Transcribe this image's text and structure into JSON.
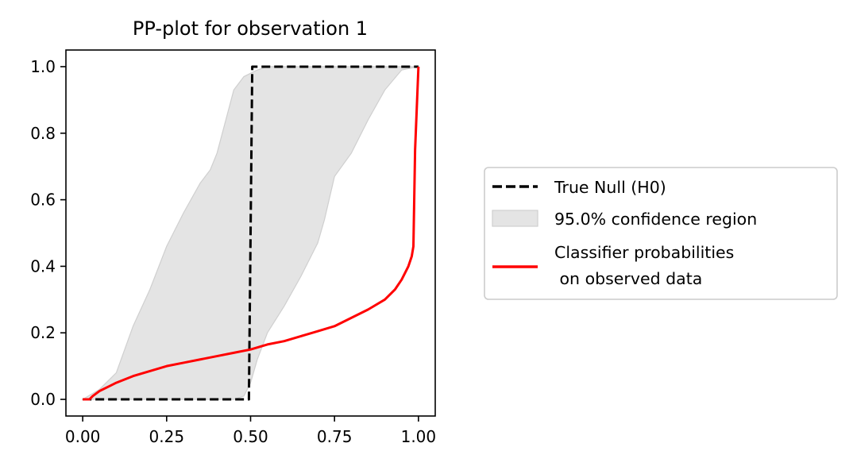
{
  "chart_data": {
    "type": "line",
    "title": "PP-plot for observation 1",
    "xlabel": "",
    "ylabel": "",
    "xlim": [
      -0.05,
      1.05
    ],
    "ylim": [
      -0.05,
      1.05
    ],
    "x_ticks": [
      "0.00",
      "0.25",
      "0.50",
      "0.75",
      "1.00"
    ],
    "y_ticks": [
      "0.0",
      "0.2",
      "0.4",
      "0.6",
      "0.8",
      "1.0"
    ],
    "x_tick_values": [
      0,
      0.25,
      0.5,
      0.75,
      1.0
    ],
    "y_tick_values": [
      0,
      0.2,
      0.4,
      0.6,
      0.8,
      1.0
    ],
    "grid": false,
    "legend_position": "right-outside",
    "series": [
      {
        "name": "True Null (H0)",
        "kind": "line",
        "style": "dashed",
        "color": "#000000",
        "x": [
          0.0,
          0.495,
          0.505,
          1.0
        ],
        "y": [
          0.0,
          0.0,
          1.0,
          1.0
        ]
      },
      {
        "name": "95.0% confidence region",
        "kind": "band",
        "color": "#e4e4e4",
        "edge_color": "#cfcfcf",
        "x": [
          0.0,
          0.05,
          0.1,
          0.15,
          0.2,
          0.25,
          0.3,
          0.35,
          0.38,
          0.4,
          0.45,
          0.48,
          0.5,
          0.52,
          0.55,
          0.6,
          0.65,
          0.7,
          0.72,
          0.75,
          0.8,
          0.85,
          0.9,
          0.95,
          1.0
        ],
        "lower": [
          0.0,
          0.0,
          0.0,
          0.0,
          0.0,
          0.0,
          0.0,
          0.0,
          0.0,
          0.0,
          0.0,
          0.01,
          0.05,
          0.12,
          0.2,
          0.28,
          0.37,
          0.47,
          0.54,
          0.67,
          0.74,
          0.84,
          0.93,
          0.99,
          1.0
        ],
        "upper": [
          0.0,
          0.03,
          0.08,
          0.22,
          0.33,
          0.46,
          0.56,
          0.65,
          0.69,
          0.74,
          0.93,
          0.97,
          0.98,
          0.99,
          1.0,
          1.0,
          1.0,
          1.0,
          1.0,
          1.0,
          1.0,
          1.0,
          1.0,
          1.0,
          1.0
        ]
      },
      {
        "name": "Classifier probabilities\n on observed data",
        "kind": "line",
        "style": "solid",
        "color": "#ff0000",
        "x": [
          0.0,
          0.02,
          0.03,
          0.05,
          0.08,
          0.1,
          0.15,
          0.2,
          0.25,
          0.3,
          0.35,
          0.4,
          0.45,
          0.5,
          0.55,
          0.6,
          0.65,
          0.7,
          0.75,
          0.8,
          0.85,
          0.9,
          0.93,
          0.95,
          0.97,
          0.98,
          0.985,
          0.99,
          1.0
        ],
        "y": [
          0.0,
          0.0,
          0.01,
          0.025,
          0.04,
          0.05,
          0.07,
          0.085,
          0.1,
          0.11,
          0.12,
          0.13,
          0.14,
          0.15,
          0.165,
          0.175,
          0.19,
          0.205,
          0.22,
          0.245,
          0.27,
          0.3,
          0.33,
          0.36,
          0.4,
          0.43,
          0.46,
          0.75,
          1.0
        ]
      }
    ],
    "legend_labels": {
      "h0": "True Null (H0)",
      "region": "95.0% confidence region",
      "classifier_line1": "Classifier probabilities",
      "classifier_line2": " on observed data"
    }
  }
}
